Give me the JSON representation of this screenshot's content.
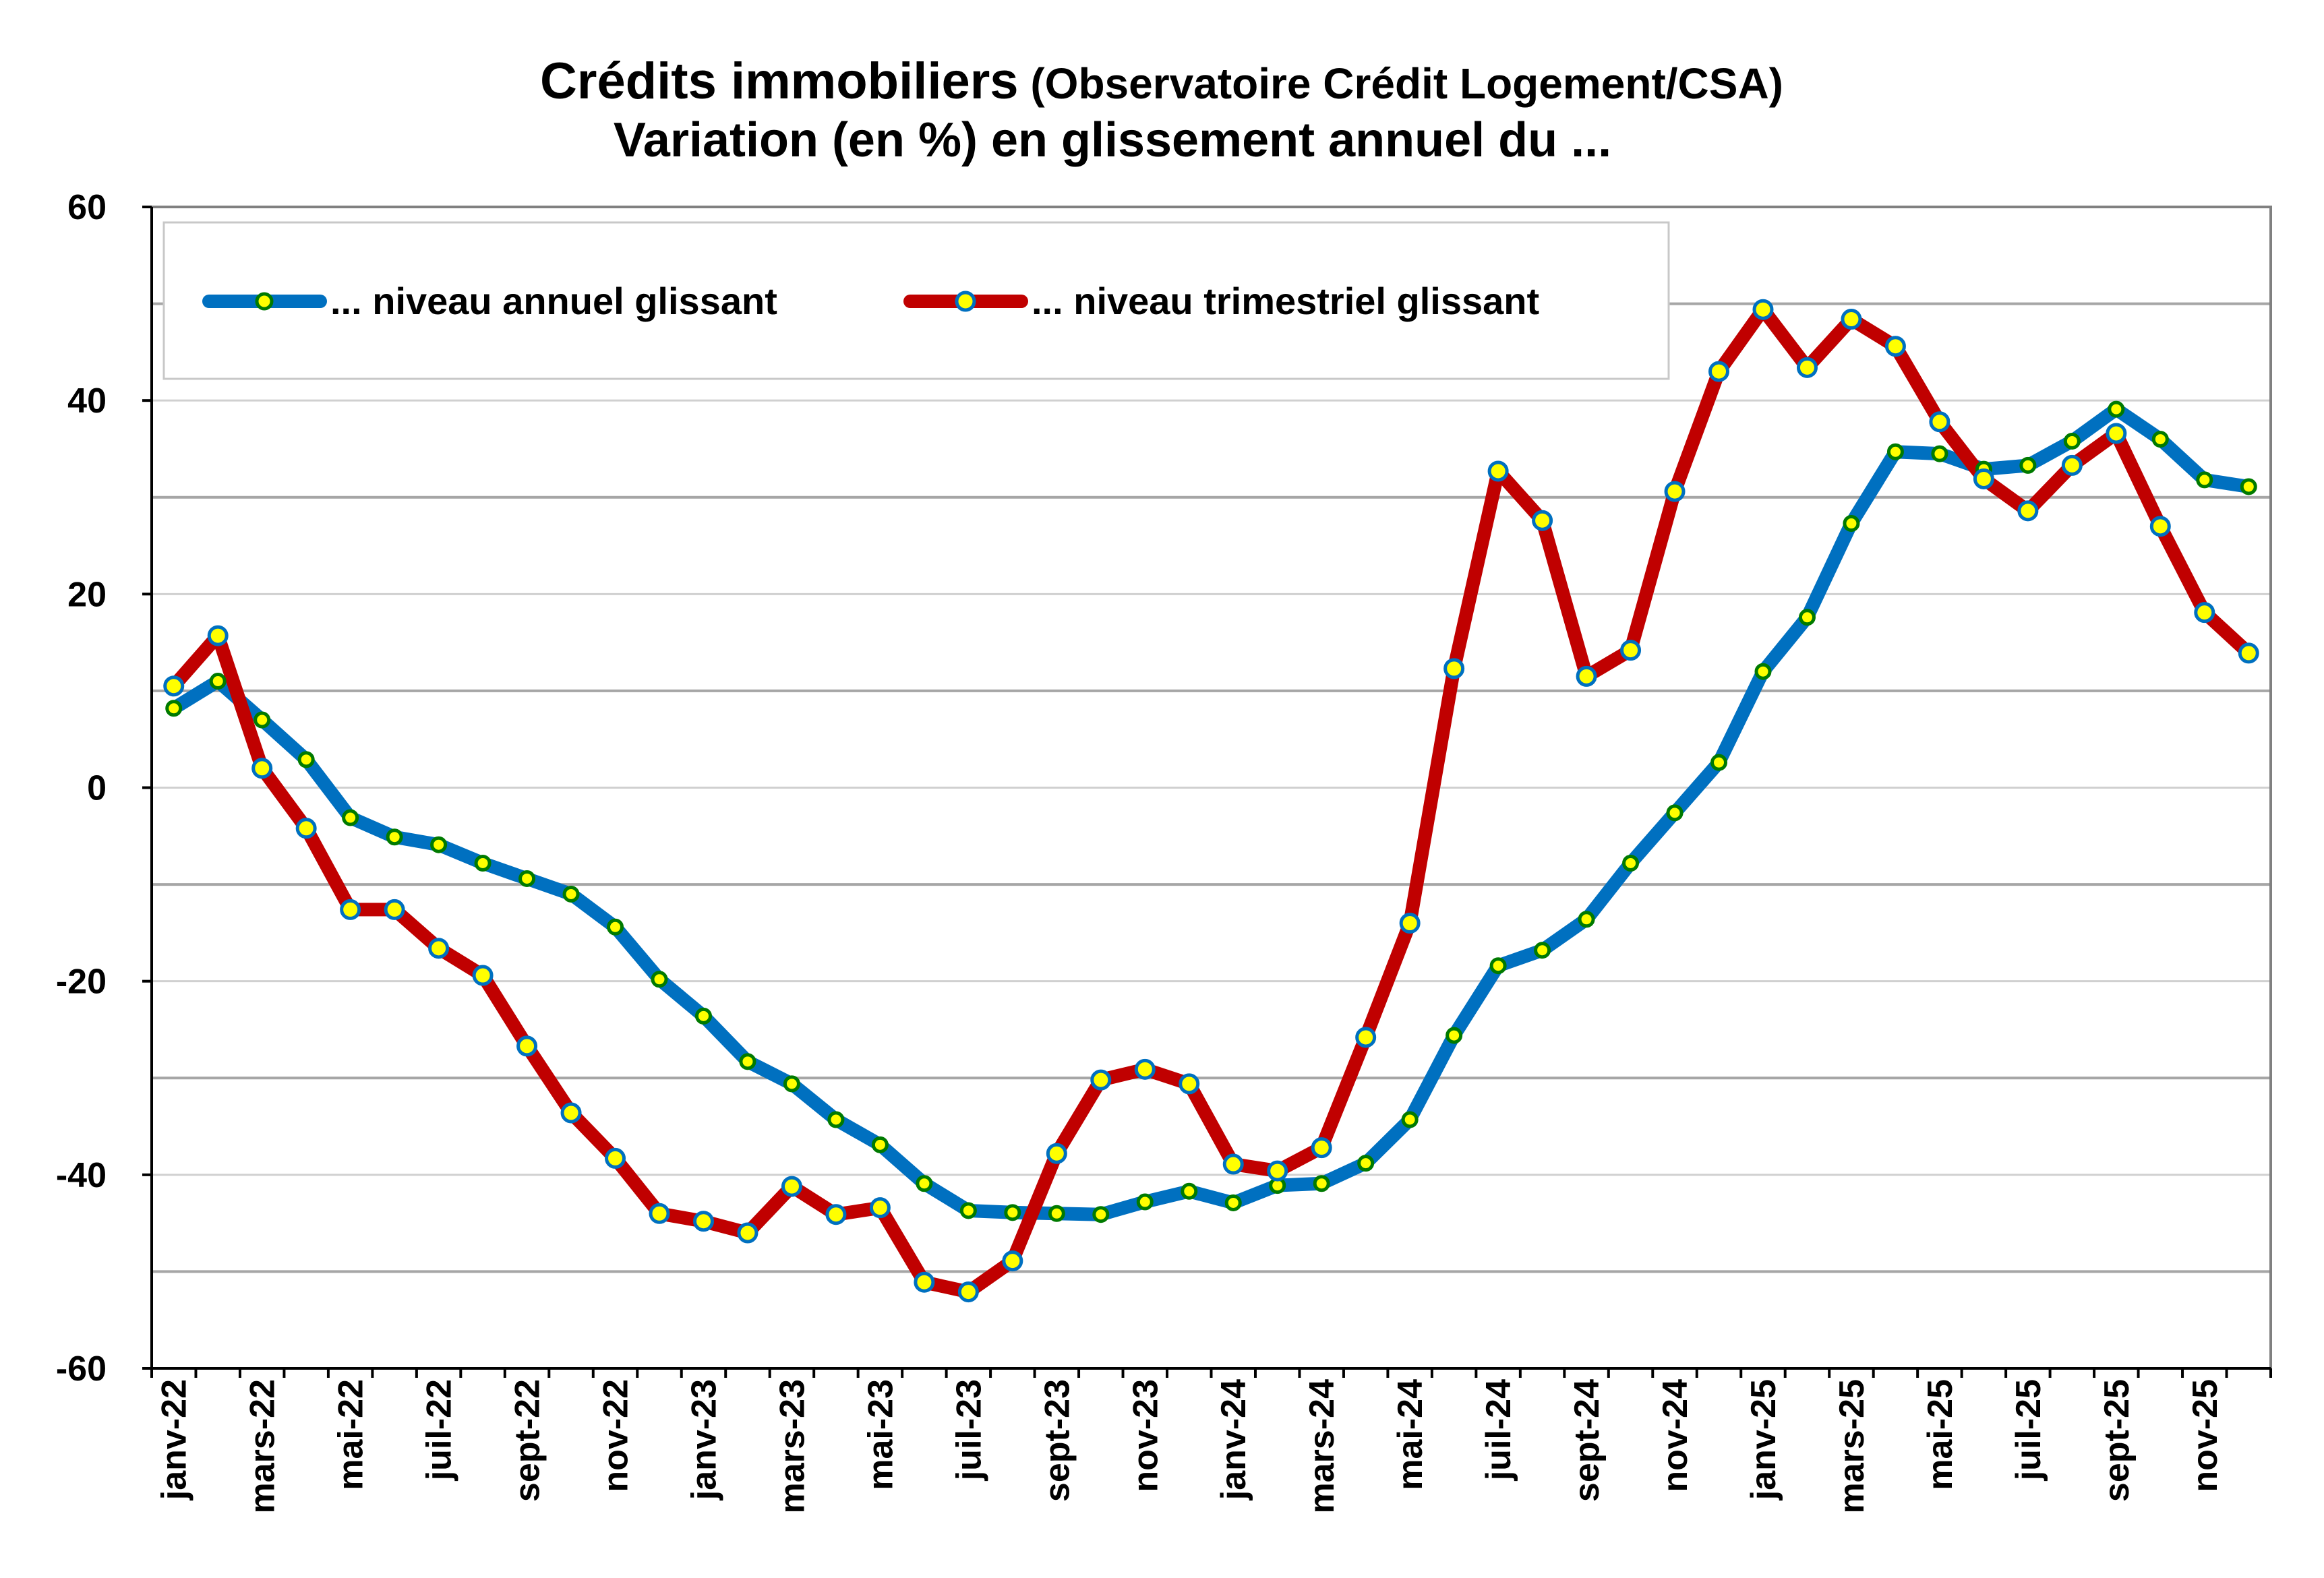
{
  "chart_data": {
    "type": "line",
    "title_main": "Crédits immobiliers",
    "title_source": " (Observatoire Crédit Logement/CSA)",
    "subtitle": "Variation (en %) en glissement annuel du ...",
    "ylim": [
      -60,
      60
    ],
    "y_ticks": [
      "60",
      "40",
      "20",
      "0",
      "-20",
      "-40",
      "-60"
    ],
    "grid": true,
    "legend_position": "top-left",
    "x_tick_labels": [
      "janv-22",
      "mars-22",
      "mai-22",
      "juil-22",
      "sept-22",
      "nov-22",
      "janv-23",
      "mars-23",
      "mai-23",
      "juil-23",
      "sept-23",
      "nov-23",
      "janv-24",
      "mars-24",
      "mai-24",
      "juil-24",
      "sept-24",
      "nov-24",
      "janv-25",
      "mars-25",
      "mai-25",
      "juil-25",
      "sept-25",
      "nov-25"
    ],
    "categories": [
      "janv-22",
      "févr-22",
      "mars-22",
      "avr-22",
      "mai-22",
      "juin-22",
      "juil-22",
      "août-22",
      "sept-22",
      "oct-22",
      "nov-22",
      "déc-22",
      "janv-23",
      "févr-23",
      "mars-23",
      "avr-23",
      "mai-23",
      "juin-23",
      "juil-23",
      "août-23",
      "sept-23",
      "oct-23",
      "nov-23",
      "déc-23",
      "janv-24",
      "févr-24",
      "mars-24",
      "avr-24",
      "mai-24",
      "juin-24",
      "juil-24",
      "août-24",
      "sept-24",
      "oct-24",
      "nov-24",
      "déc-24",
      "janv-25",
      "févr-25",
      "mars-25",
      "avr-25",
      "mai-25",
      "juin-25",
      "juil-25",
      "août-25",
      "sept-25",
      "oct-25",
      "nov-25",
      "déc-25"
    ],
    "series": [
      {
        "name": "... niveau annuel glissant",
        "color": "#0070C0",
        "marker_fill": "#FFFF00",
        "marker_stroke": "#007A00",
        "values": [
          8.2,
          11.0,
          7.0,
          2.9,
          -3.1,
          -5.1,
          -5.9,
          -7.8,
          -9.4,
          -11.0,
          -14.4,
          -19.8,
          -23.6,
          -28.3,
          -30.6,
          -34.3,
          -36.9,
          -40.9,
          -43.7,
          -43.9,
          -44.0,
          -44.1,
          -42.8,
          -41.7,
          -42.9,
          -41.1,
          -40.9,
          -38.8,
          -34.3,
          -25.6,
          -18.4,
          -16.8,
          -13.6,
          -7.8,
          -2.6,
          2.6,
          12.0,
          17.6,
          27.3,
          34.7,
          34.5,
          32.9,
          33.3,
          35.8,
          39.1,
          36.0,
          31.8,
          31.1
        ]
      },
      {
        "name": "... niveau trimestriel glissant",
        "color": "#C00000",
        "marker_fill": "#FFFF00",
        "marker_stroke": "#0070C0",
        "values": [
          10.5,
          15.7,
          2.0,
          -4.2,
          -12.6,
          -12.6,
          -16.6,
          -19.4,
          -26.7,
          -33.6,
          -38.3,
          -44.0,
          -44.8,
          -46.0,
          -41.2,
          -44.1,
          -43.4,
          -51.1,
          -52.1,
          -48.9,
          -37.8,
          -30.2,
          -29.1,
          -30.6,
          -38.9,
          -39.6,
          -37.2,
          -25.8,
          -14.0,
          12.3,
          32.7,
          27.6,
          11.5,
          14.2,
          30.6,
          43.0,
          49.4,
          43.4,
          48.4,
          45.6,
          37.8,
          31.9,
          28.6,
          33.3,
          36.6,
          27.0,
          18.1,
          13.9
        ]
      }
    ]
  }
}
